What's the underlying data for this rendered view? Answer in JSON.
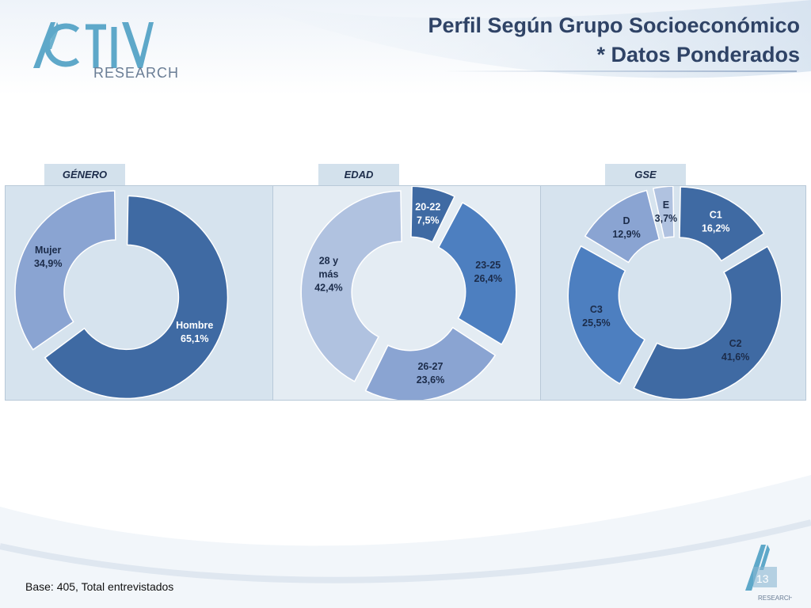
{
  "header": {
    "title_line1": "Perfil Según Grupo Socioeconómico",
    "title_line2": "* Datos Ponderados",
    "logo_text_top": "ACTIVA",
    "logo_text_bottom": "RESEARCH"
  },
  "panels": [
    {
      "tab": "GÉNERO"
    },
    {
      "tab": "EDAD"
    },
    {
      "tab": "GSE"
    }
  ],
  "colors": {
    "dark": "#3f6aa3",
    "mid": "#4d7fc0",
    "light": "#8aa4d2",
    "pale": "#b0c2e0",
    "label_dark": "#1c2c4a",
    "label_light": "#ffffff"
  },
  "chart_data": [
    {
      "type": "pie",
      "title": "GÉNERO",
      "slices": [
        {
          "label_line1": "Hombre",
          "label_line2": "65,1%",
          "value": 65.1,
          "color": "#3f6aa3",
          "text_color": "#ffffff"
        },
        {
          "label_line1": "Mujer",
          "label_line2": "34,9%",
          "value": 34.9,
          "color": "#8aa4d2",
          "text_color": "#1c2c4a"
        }
      ]
    },
    {
      "type": "pie",
      "title": "EDAD",
      "slices": [
        {
          "label_line1": "20-22",
          "label_line2": "7,5%",
          "value": 7.5,
          "color": "#3f6aa3",
          "text_color": "#ffffff"
        },
        {
          "label_line1": "23-25",
          "label_line2": "26,4%",
          "value": 26.4,
          "color": "#4d7fc0",
          "text_color": "#1c2c4a"
        },
        {
          "label_line1": "26-27",
          "label_line2": "23,6%",
          "value": 23.6,
          "color": "#8aa4d2",
          "text_color": "#1c2c4a"
        },
        {
          "label_line1": "28 y",
          "label_line2": "más",
          "label_line3": "42,4%",
          "value": 42.4,
          "color": "#b0c2e0",
          "text_color": "#1c2c4a"
        }
      ]
    },
    {
      "type": "pie",
      "title": "GSE",
      "slices": [
        {
          "label_line1": "C1",
          "label_line2": "16,2%",
          "value": 16.2,
          "color": "#3f6aa3",
          "text_color": "#ffffff"
        },
        {
          "label_line1": "C2",
          "label_line2": "41,6%",
          "value": 41.6,
          "color": "#3f6aa3",
          "text_color": "#1c2c4a"
        },
        {
          "label_line1": "C3",
          "label_line2": "25,5%",
          "value": 25.5,
          "color": "#4d7fc0",
          "text_color": "#1c2c4a"
        },
        {
          "label_line1": "D",
          "label_line2": "12,9%",
          "value": 12.9,
          "color": "#8aa4d2",
          "text_color": "#1c2c4a"
        },
        {
          "label_line1": "E",
          "label_line2": "3,7%",
          "value": 3.7,
          "color": "#b0c2e0",
          "text_color": "#1c2c4a"
        }
      ]
    }
  ],
  "footer": {
    "base_text": "Base: 405, Total entrevistados",
    "page_number": "13",
    "logo_text": "RESEARCH"
  }
}
